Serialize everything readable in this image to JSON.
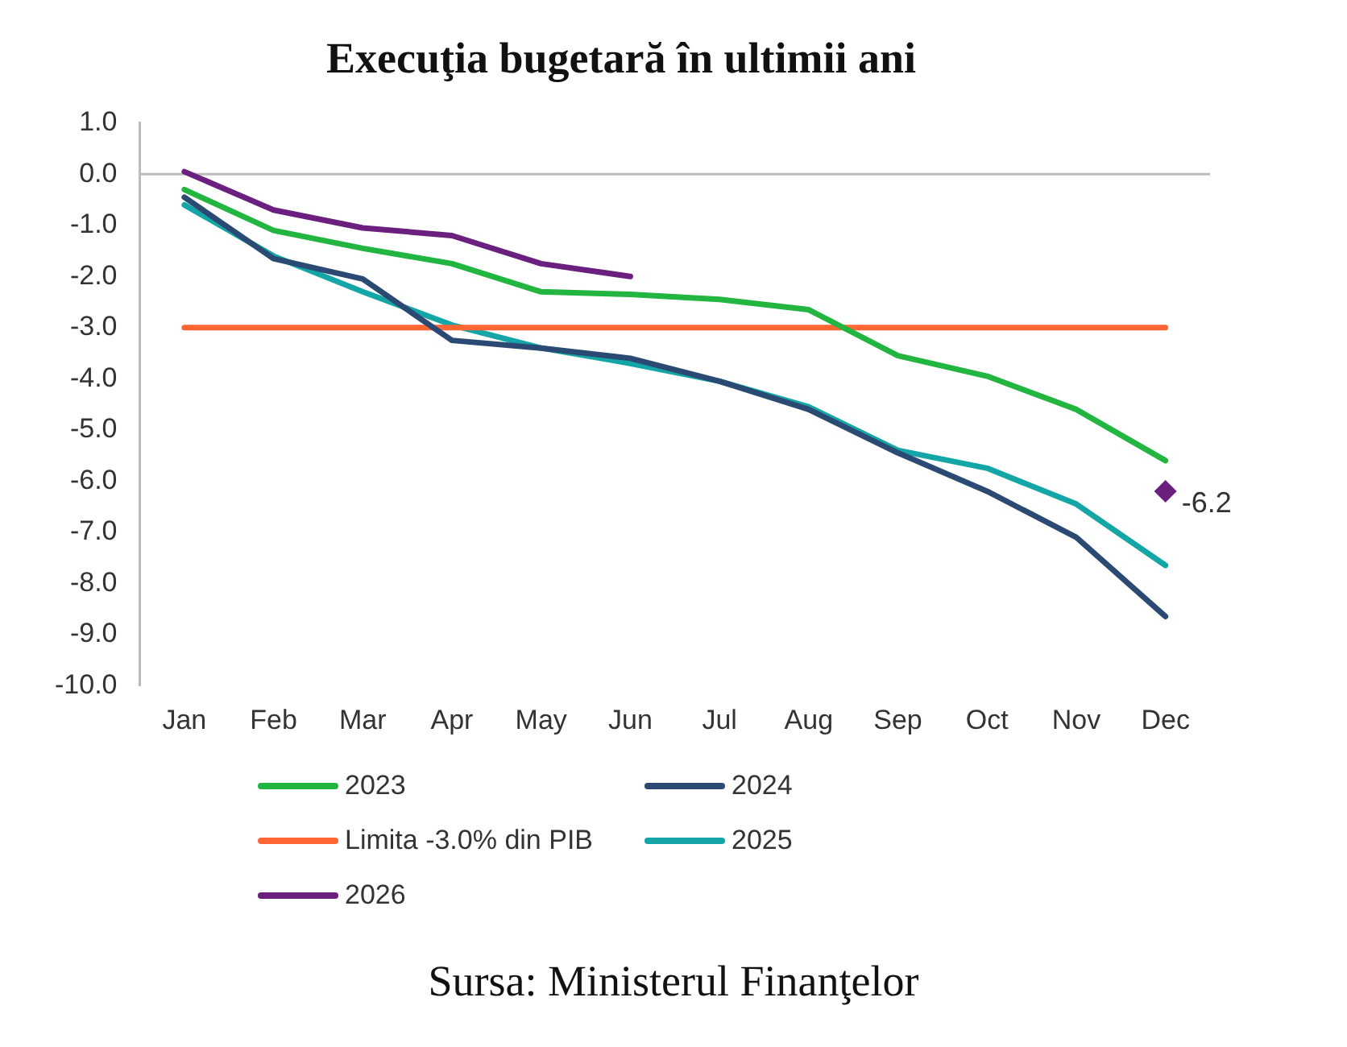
{
  "chart_data": {
    "type": "line",
    "title": "Execuţia bugetară în ultimii ani",
    "categories": [
      "Jan",
      "Feb",
      "Mar",
      "Apr",
      "May",
      "Jun",
      "Jul",
      "Aug",
      "Sep",
      "Oct",
      "Nov",
      "Dec"
    ],
    "series": [
      {
        "name": "2023",
        "color": "#22b540",
        "values": [
          -0.3,
          -1.1,
          -1.45,
          -1.75,
          -2.3,
          -2.35,
          -2.45,
          -2.65,
          -3.55,
          -3.95,
          -4.6,
          -5.6
        ]
      },
      {
        "name": "2024",
        "color": "#2b4a73",
        "values": [
          -0.45,
          -1.65,
          -2.05,
          -3.25,
          -3.4,
          -3.6,
          -4.05,
          -4.6,
          -5.45,
          -6.2,
          -7.1,
          -8.65
        ]
      },
      {
        "name": "Limita -3.0% din PIB",
        "color": "#ff6633",
        "values": [
          -3,
          -3,
          -3,
          -3,
          -3,
          -3,
          -3,
          -3,
          -3,
          -3,
          -3,
          -3
        ]
      },
      {
        "name": "2025",
        "color": "#14a6a6",
        "values": [
          -0.6,
          -1.6,
          -2.3,
          -2.95,
          -3.4,
          -3.7,
          -4.05,
          -4.55,
          -5.4,
          -5.75,
          -6.45,
          -7.65
        ]
      },
      {
        "name": "2026",
        "color": "#6b1f7f",
        "values": [
          0.05,
          -0.7,
          -1.05,
          -1.2,
          -1.75,
          -2.0,
          null,
          null,
          null,
          null,
          null,
          null
        ]
      },
      {
        "type": "scatter",
        "marker": "diamond",
        "color": "#6b1f7f",
        "values": [
          null,
          null,
          null,
          null,
          null,
          null,
          null,
          null,
          null,
          null,
          null,
          -6.2
        ],
        "value_labels": [
          null,
          null,
          null,
          null,
          null,
          null,
          null,
          null,
          null,
          null,
          null,
          "-6.2"
        ]
      }
    ],
    "ylim": [
      -10,
      1
    ],
    "yticks": [
      {
        "value": 1,
        "label": "1.0"
      },
      {
        "value": 0,
        "label": "0.0"
      },
      {
        "value": -1,
        "label": "-1.0"
      },
      {
        "value": -2,
        "label": "-2.0"
      },
      {
        "value": -3,
        "label": "-3.0"
      },
      {
        "value": -4,
        "label": "-4.0"
      },
      {
        "value": -5,
        "label": "-5.0"
      },
      {
        "value": -6,
        "label": "-6.0"
      },
      {
        "value": -7,
        "label": "-7.0"
      },
      {
        "value": -8,
        "label": "-8.0"
      },
      {
        "value": -9,
        "label": "-9.0"
      },
      {
        "value": -10,
        "label": "-10.0"
      }
    ],
    "grid": false,
    "ref_lines": [
      {
        "axis": "y",
        "value": 0,
        "color": "#bbbbbb"
      }
    ],
    "legend": "bottom",
    "marker": "none",
    "line_style": "solid",
    "annotations": [
      "Sursa: Ministerul Finanţelor"
    ]
  }
}
